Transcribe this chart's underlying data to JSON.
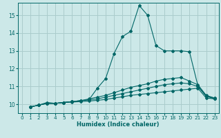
{
  "xlabel": "Humidex (Indice chaleur)",
  "ylabel": "",
  "bg_color": "#cce8e8",
  "grid_color": "#aacccc",
  "line_color": "#006666",
  "xlim": [
    -0.5,
    23.5
  ],
  "ylim": [
    9.5,
    15.7
  ],
  "xticks": [
    0,
    1,
    2,
    3,
    4,
    5,
    6,
    7,
    8,
    9,
    10,
    11,
    12,
    13,
    14,
    15,
    16,
    17,
    18,
    19,
    20,
    21,
    22,
    23
  ],
  "yticks": [
    10,
    11,
    12,
    13,
    14,
    15
  ],
  "lines": [
    {
      "x": [
        1,
        2,
        3,
        4,
        5,
        6,
        7,
        8,
        9,
        10,
        11,
        12,
        13,
        14,
        15,
        16,
        17,
        18,
        19,
        20,
        21,
        22,
        23
      ],
      "y": [
        9.85,
        9.95,
        10.1,
        10.05,
        10.1,
        10.15,
        10.2,
        10.25,
        10.9,
        11.45,
        12.85,
        13.8,
        14.1,
        15.55,
        15.0,
        13.3,
        13.0,
        13.0,
        13.0,
        12.95,
        11.05,
        10.45,
        10.35
      ]
    },
    {
      "x": [
        1,
        2,
        3,
        4,
        5,
        6,
        7,
        8,
        9,
        10,
        11,
        12,
        13,
        14,
        15,
        16,
        17,
        18,
        19,
        20,
        21,
        22,
        23
      ],
      "y": [
        9.85,
        9.95,
        10.05,
        10.05,
        10.1,
        10.15,
        10.2,
        10.3,
        10.4,
        10.5,
        10.65,
        10.8,
        10.95,
        11.05,
        11.15,
        11.3,
        11.4,
        11.45,
        11.5,
        11.3,
        11.1,
        10.5,
        10.35
      ]
    },
    {
      "x": [
        1,
        2,
        3,
        4,
        5,
        6,
        7,
        8,
        9,
        10,
        11,
        12,
        13,
        14,
        15,
        16,
        17,
        18,
        19,
        20,
        21,
        22,
        23
      ],
      "y": [
        9.85,
        9.95,
        10.05,
        10.05,
        10.1,
        10.15,
        10.2,
        10.25,
        10.3,
        10.4,
        10.5,
        10.6,
        10.7,
        10.8,
        10.9,
        11.0,
        11.1,
        11.15,
        11.2,
        11.15,
        11.0,
        10.45,
        10.3
      ]
    },
    {
      "x": [
        1,
        2,
        3,
        4,
        5,
        6,
        7,
        8,
        9,
        10,
        11,
        12,
        13,
        14,
        15,
        16,
        17,
        18,
        19,
        20,
        21,
        22,
        23
      ],
      "y": [
        9.85,
        9.95,
        10.05,
        10.05,
        10.1,
        10.12,
        10.15,
        10.18,
        10.22,
        10.27,
        10.35,
        10.42,
        10.5,
        10.55,
        10.6,
        10.65,
        10.7,
        10.75,
        10.8,
        10.85,
        10.9,
        10.35,
        10.3
      ]
    }
  ]
}
